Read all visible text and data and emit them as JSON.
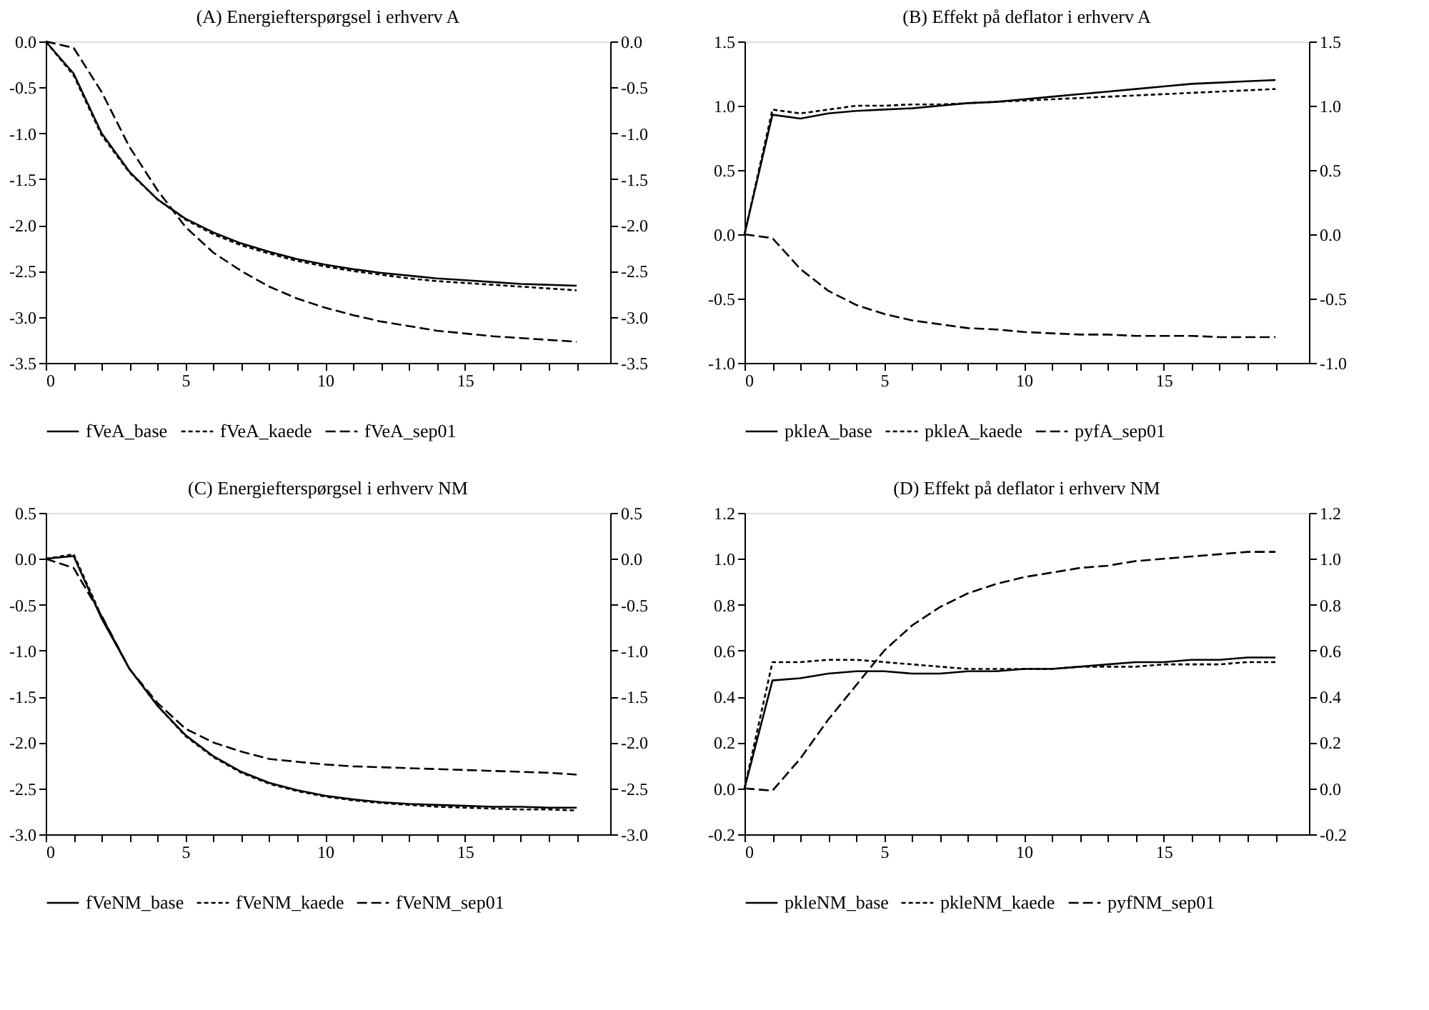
{
  "chart_data": [
    {
      "type": "line",
      "title": "(A) Energiefterspørgsel i erhverv A",
      "x": [
        0,
        1,
        2,
        3,
        4,
        5,
        6,
        7,
        8,
        9,
        10,
        11,
        12,
        13,
        14,
        15,
        16,
        17,
        18,
        19
      ],
      "series": [
        {
          "name": "fVeA_base",
          "color": "#000000",
          "line_style": "solid",
          "values": [
            0,
            -0.35,
            -1.0,
            -1.42,
            -1.72,
            -1.93,
            -2.08,
            -2.2,
            -2.29,
            -2.37,
            -2.43,
            -2.48,
            -2.52,
            -2.55,
            -2.58,
            -2.6,
            -2.62,
            -2.64,
            -2.65,
            -2.66
          ]
        },
        {
          "name": "fVeA_kaede",
          "color": "#000000",
          "line_style": "dotted",
          "values": [
            0,
            -0.37,
            -1.02,
            -1.43,
            -1.72,
            -1.94,
            -2.1,
            -2.22,
            -2.31,
            -2.39,
            -2.45,
            -2.5,
            -2.54,
            -2.58,
            -2.61,
            -2.63,
            -2.65,
            -2.67,
            -2.69,
            -2.71
          ]
        },
        {
          "name": "fVeA_sep01",
          "color": "#000000",
          "line_style": "dashed",
          "values": [
            0,
            -0.07,
            -0.55,
            -1.15,
            -1.62,
            -2.02,
            -2.3,
            -2.5,
            -2.67,
            -2.8,
            -2.9,
            -2.98,
            -3.05,
            -3.1,
            -3.15,
            -3.18,
            -3.21,
            -3.23,
            -3.25,
            -3.27
          ]
        }
      ],
      "xlim": [
        0,
        20.2
      ],
      "xticks": [
        0,
        {
          "value": 1,
          "label": null
        },
        {
          "value": 2,
          "label": null
        },
        {
          "value": 3,
          "label": null
        },
        {
          "value": 4,
          "label": null
        },
        5,
        {
          "value": 6,
          "label": null
        },
        {
          "value": 7,
          "label": null
        },
        {
          "value": 8,
          "label": null
        },
        {
          "value": 9,
          "label": null
        },
        10,
        {
          "value": 11,
          "label": null
        },
        {
          "value": 12,
          "label": null
        },
        {
          "value": 13,
          "label": null
        },
        {
          "value": 14,
          "label": null
        },
        15,
        {
          "value": 16,
          "label": null
        },
        {
          "value": 17,
          "label": null
        },
        {
          "value": 18,
          "label": null
        },
        {
          "value": 19,
          "label": null
        }
      ],
      "ylim": [
        -3.5,
        0
      ],
      "yticks": [
        {
          "value": 0,
          "label": "0.0"
        },
        -0.5,
        {
          "value": -1,
          "label": "-1.0"
        },
        -1.5,
        {
          "value": -2,
          "label": "-2.0"
        },
        -2.5,
        {
          "value": -3,
          "label": "-3.0"
        },
        -3.5
      ],
      "y2lim": [
        -3.5,
        0
      ],
      "y2ticks": [
        {
          "value": 0,
          "label": "0.0"
        },
        -0.5,
        {
          "value": -1,
          "label": "-1.0"
        },
        -1.5,
        {
          "value": -2,
          "label": "-2.0"
        },
        -2.5,
        {
          "value": -3,
          "label": "-3.0"
        },
        -3.5
      ],
      "grid": false,
      "legend": "bottom",
      "marker": "none"
    },
    {
      "type": "line",
      "title": "(B) Effekt på deflator i erhverv A",
      "x": [
        0,
        1,
        2,
        3,
        4,
        5,
        6,
        7,
        8,
        9,
        10,
        11,
        12,
        13,
        14,
        15,
        16,
        17,
        18,
        19
      ],
      "series": [
        {
          "name": "pkleA_base",
          "color": "#000000",
          "line_style": "solid",
          "values": [
            0,
            0.93,
            0.9,
            0.94,
            0.96,
            0.97,
            0.98,
            1.0,
            1.02,
            1.03,
            1.05,
            1.07,
            1.09,
            1.11,
            1.13,
            1.15,
            1.17,
            1.18,
            1.19,
            1.2
          ]
        },
        {
          "name": "pkleA_kaede",
          "color": "#000000",
          "line_style": "dotted",
          "values": [
            0,
            0.97,
            0.94,
            0.97,
            1.0,
            1.0,
            1.01,
            1.01,
            1.02,
            1.03,
            1.04,
            1.05,
            1.06,
            1.07,
            1.08,
            1.09,
            1.1,
            1.11,
            1.12,
            1.13
          ]
        },
        {
          "name": "pyfA_sep01",
          "color": "#000000",
          "line_style": "dashed",
          "values": [
            0,
            -0.03,
            -0.27,
            -0.44,
            -0.55,
            -0.62,
            -0.67,
            -0.7,
            -0.73,
            -0.74,
            -0.76,
            -0.77,
            -0.78,
            -0.78,
            -0.79,
            -0.79,
            -0.79,
            -0.8,
            -0.8,
            -0.8
          ]
        }
      ],
      "xlim": [
        0,
        20.2
      ],
      "xticks": [
        0,
        {
          "value": 1,
          "label": null
        },
        {
          "value": 2,
          "label": null
        },
        {
          "value": 3,
          "label": null
        },
        {
          "value": 4,
          "label": null
        },
        5,
        {
          "value": 6,
          "label": null
        },
        {
          "value": 7,
          "label": null
        },
        {
          "value": 8,
          "label": null
        },
        {
          "value": 9,
          "label": null
        },
        10,
        {
          "value": 11,
          "label": null
        },
        {
          "value": 12,
          "label": null
        },
        {
          "value": 13,
          "label": null
        },
        {
          "value": 14,
          "label": null
        },
        15,
        {
          "value": 16,
          "label": null
        },
        {
          "value": 17,
          "label": null
        },
        {
          "value": 18,
          "label": null
        },
        {
          "value": 19,
          "label": null
        }
      ],
      "ylim": [
        -1,
        1.5
      ],
      "yticks": [
        {
          "value": -1,
          "label": "-1.0"
        },
        -0.5,
        {
          "value": 0,
          "label": "0.0"
        },
        0.5,
        {
          "value": 1,
          "label": "1.0"
        },
        1.5
      ],
      "y2lim": [
        -1,
        1.5
      ],
      "y2ticks": [
        {
          "value": -1,
          "label": "-1.0"
        },
        -0.5,
        {
          "value": 0,
          "label": "0.0"
        },
        0.5,
        {
          "value": 1,
          "label": "1.0"
        },
        1.5
      ],
      "grid": false,
      "legend": "bottom",
      "marker": "none"
    },
    {
      "type": "line",
      "title": "(C) Energiefterspørgsel i erhverv NM",
      "x": [
        0,
        1,
        2,
        3,
        4,
        5,
        6,
        7,
        8,
        9,
        10,
        11,
        12,
        13,
        14,
        15,
        16,
        17,
        18,
        19
      ],
      "series": [
        {
          "name": "fVeNM_base",
          "color": "#000000",
          "line_style": "solid",
          "values": [
            0,
            0.03,
            -0.65,
            -1.2,
            -1.6,
            -1.92,
            -2.15,
            -2.32,
            -2.44,
            -2.52,
            -2.58,
            -2.62,
            -2.65,
            -2.67,
            -2.68,
            -2.69,
            -2.7,
            -2.7,
            -2.71,
            -2.71
          ]
        },
        {
          "name": "fVeNM_kaede",
          "color": "#000000",
          "line_style": "dotted",
          "values": [
            0,
            0.05,
            -0.63,
            -1.2,
            -1.6,
            -1.93,
            -2.16,
            -2.33,
            -2.45,
            -2.53,
            -2.59,
            -2.63,
            -2.66,
            -2.68,
            -2.7,
            -2.71,
            -2.72,
            -2.73,
            -2.73,
            -2.74
          ]
        },
        {
          "name": "fVeNM_sep01",
          "color": "#000000",
          "line_style": "dashed",
          "values": [
            0,
            -0.1,
            -0.62,
            -1.2,
            -1.57,
            -1.85,
            -2.0,
            -2.1,
            -2.18,
            -2.21,
            -2.24,
            -2.26,
            -2.27,
            -2.28,
            -2.29,
            -2.3,
            -2.31,
            -2.32,
            -2.33,
            -2.35
          ]
        }
      ],
      "xlim": [
        0,
        20.2
      ],
      "xticks": [
        0,
        {
          "value": 1,
          "label": null
        },
        {
          "value": 2,
          "label": null
        },
        {
          "value": 3,
          "label": null
        },
        {
          "value": 4,
          "label": null
        },
        5,
        {
          "value": 6,
          "label": null
        },
        {
          "value": 7,
          "label": null
        },
        {
          "value": 8,
          "label": null
        },
        {
          "value": 9,
          "label": null
        },
        10,
        {
          "value": 11,
          "label": null
        },
        {
          "value": 12,
          "label": null
        },
        {
          "value": 13,
          "label": null
        },
        {
          "value": 14,
          "label": null
        },
        15,
        {
          "value": 16,
          "label": null
        },
        {
          "value": 17,
          "label": null
        },
        {
          "value": 18,
          "label": null
        },
        {
          "value": 19,
          "label": null
        }
      ],
      "ylim": [
        -3,
        0.5
      ],
      "yticks": [
        {
          "value": -3,
          "label": "-3.0"
        },
        -2.5,
        {
          "value": -2,
          "label": "-2.0"
        },
        -1.5,
        {
          "value": -1,
          "label": "-1.0"
        },
        -0.5,
        {
          "value": 0,
          "label": "0.0"
        },
        0.5
      ],
      "y2lim": [
        -3,
        0.5
      ],
      "y2ticks": [
        {
          "value": -3,
          "label": "-3.0"
        },
        -2.5,
        {
          "value": -2,
          "label": "-2.0"
        },
        -1.5,
        {
          "value": -1,
          "label": "-1.0"
        },
        -0.5,
        {
          "value": 0,
          "label": "0.0"
        },
        0.5
      ],
      "grid": false,
      "legend": "bottom",
      "marker": "none"
    },
    {
      "type": "line",
      "title": "(D) Effekt på deflator i erhverv NM",
      "x": [
        0,
        1,
        2,
        3,
        4,
        5,
        6,
        7,
        8,
        9,
        10,
        11,
        12,
        13,
        14,
        15,
        16,
        17,
        18,
        19
      ],
      "series": [
        {
          "name": "pkleNM_base",
          "color": "#000000",
          "line_style": "solid",
          "values": [
            0,
            0.47,
            0.48,
            0.5,
            0.51,
            0.51,
            0.5,
            0.5,
            0.51,
            0.51,
            0.52,
            0.52,
            0.53,
            0.54,
            0.55,
            0.55,
            0.56,
            0.56,
            0.57,
            0.57
          ]
        },
        {
          "name": "pkleNM_kaede",
          "color": "#000000",
          "line_style": "dotted",
          "values": [
            0,
            0.55,
            0.55,
            0.56,
            0.56,
            0.55,
            0.54,
            0.53,
            0.52,
            0.52,
            0.52,
            0.52,
            0.53,
            0.53,
            0.53,
            0.54,
            0.54,
            0.54,
            0.55,
            0.55
          ]
        },
        {
          "name": "pyfNM_sep01",
          "color": "#000000",
          "line_style": "dashed",
          "values": [
            0,
            -0.01,
            0.13,
            0.3,
            0.45,
            0.6,
            0.71,
            0.79,
            0.85,
            0.89,
            0.92,
            0.94,
            0.96,
            0.97,
            0.99,
            1.0,
            1.01,
            1.02,
            1.03,
            1.03
          ]
        }
      ],
      "xlim": [
        0,
        20.2
      ],
      "xticks": [
        0,
        {
          "value": 1,
          "label": null
        },
        {
          "value": 2,
          "label": null
        },
        {
          "value": 3,
          "label": null
        },
        {
          "value": 4,
          "label": null
        },
        5,
        {
          "value": 6,
          "label": null
        },
        {
          "value": 7,
          "label": null
        },
        {
          "value": 8,
          "label": null
        },
        {
          "value": 9,
          "label": null
        },
        10,
        {
          "value": 11,
          "label": null
        },
        {
          "value": 12,
          "label": null
        },
        {
          "value": 13,
          "label": null
        },
        {
          "value": 14,
          "label": null
        },
        15,
        {
          "value": 16,
          "label": null
        },
        {
          "value": 17,
          "label": null
        },
        {
          "value": 18,
          "label": null
        },
        {
          "value": 19,
          "label": null
        }
      ],
      "ylim": [
        -0.2,
        1.2
      ],
      "yticks": [
        -0.2,
        {
          "value": 0,
          "label": "0.0"
        },
        0.2,
        0.4,
        0.6,
        0.8,
        {
          "value": 1,
          "label": "1.0"
        },
        1.2
      ],
      "y2lim": [
        -0.2,
        1.2
      ],
      "y2ticks": [
        -0.2,
        {
          "value": 0,
          "label": "0.0"
        },
        0.2,
        0.4,
        0.6,
        0.8,
        {
          "value": 1,
          "label": "1.0"
        },
        1.2
      ],
      "grid": false,
      "legend": "bottom",
      "marker": "none"
    }
  ]
}
